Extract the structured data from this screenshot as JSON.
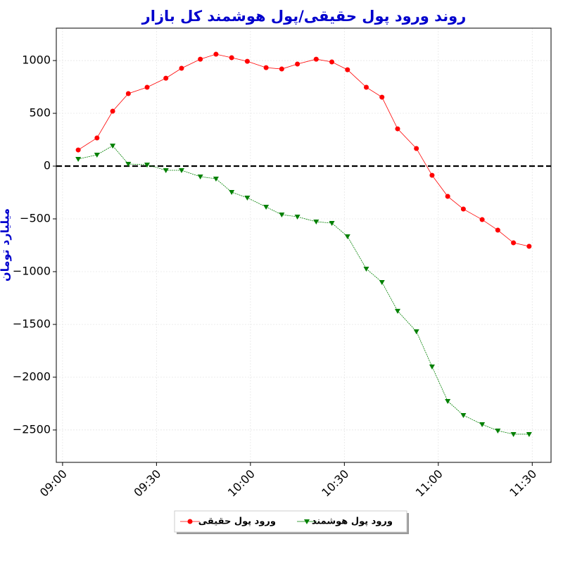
{
  "chart_data": {
    "type": "line",
    "title": "روند ورود پول حقیقی/پول هوشمند کل بازار",
    "y_label": "میلیارد تومان",
    "x": [
      "09:05",
      "09:11",
      "09:16",
      "09:21",
      "09:27",
      "09:33",
      "09:38",
      "09:44",
      "09:49",
      "09:54",
      "09:59",
      "10:05",
      "10:10",
      "10:15",
      "10:21",
      "10:26",
      "10:31",
      "10:37",
      "10:42",
      "10:47",
      "10:53",
      "10:58",
      "11:03",
      "11:08",
      "11:14",
      "11:19",
      "11:24",
      "11:29"
    ],
    "series": [
      {
        "name": "ورود پول حقیقی",
        "color": "#ff0000",
        "marker": "circle",
        "values": [
          153,
          267,
          520,
          687,
          747,
          833,
          927,
          1013,
          1060,
          1027,
          993,
          933,
          920,
          967,
          1013,
          987,
          913,
          747,
          653,
          353,
          167,
          -87,
          -287,
          -407,
          -507,
          -607,
          -727,
          -760
        ]
      },
      {
        "name": "ورود پول هوشمند",
        "color": "#008000",
        "marker": "triangle-down",
        "values": [
          67,
          107,
          193,
          20,
          13,
          -40,
          -40,
          -100,
          -120,
          -247,
          -300,
          -387,
          -460,
          -480,
          -527,
          -540,
          -667,
          -973,
          -1100,
          -1373,
          -1567,
          -1900,
          -2227,
          -2360,
          -2447,
          -2507,
          -2540,
          -2540
        ]
      }
    ],
    "xlim": [
      "08:58",
      "11:36"
    ],
    "xticks": [
      "09:00",
      "09:30",
      "10:00",
      "10:30",
      "11:00",
      "11:30"
    ],
    "ylim": [
      -2807,
      1307
    ],
    "yticks": [
      {
        "value": -2500,
        "label": "−2500"
      },
      {
        "value": -2000,
        "label": "−2000"
      },
      {
        "value": -1500,
        "label": "−1500"
      },
      {
        "value": -1000,
        "label": "−1000"
      },
      {
        "value": -500,
        "label": "−500"
      },
      0,
      500,
      1000
    ],
    "reference_line": 0,
    "grid": true,
    "legend": "bottom"
  }
}
